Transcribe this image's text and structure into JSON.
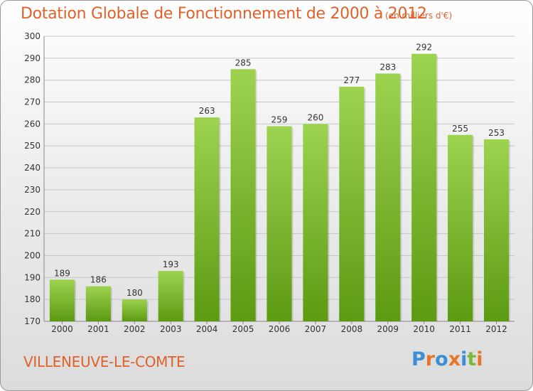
{
  "title": "Dotation Globale de Fonctionnement de 2000 à 2012",
  "unit_note": "(en milliers d'€)",
  "commune": "VILLENEUVE-LE-COMTE",
  "logo": {
    "letters": [
      "P",
      "r",
      "o",
      "x",
      "i",
      "t",
      "i"
    ],
    "colors": [
      "#3a8fd6",
      "#e8742a",
      "#3a8fd6",
      "#e8742a",
      "#3a8fd6",
      "#7fb93a",
      "#e8742a"
    ]
  },
  "colors": {
    "title": "#e0612a",
    "bar_light": "#9dd34f",
    "bar_dark": "#5c9a12",
    "grid": "#c8c8c8"
  },
  "chart_data": {
    "type": "bar",
    "title": "Dotation Globale de Fonctionnement de 2000 à 2012",
    "subtitle": "(en milliers d'€)",
    "categories": [
      "2000",
      "2001",
      "2002",
      "2003",
      "2004",
      "2005",
      "2006",
      "2007",
      "2008",
      "2009",
      "2010",
      "2011",
      "2012"
    ],
    "values": [
      189,
      186,
      180,
      193,
      263,
      285,
      259,
      260,
      277,
      283,
      292,
      255,
      253
    ],
    "ylim": [
      170,
      300
    ],
    "yticks": [
      170,
      180,
      190,
      200,
      210,
      220,
      230,
      240,
      250,
      260,
      270,
      280,
      290,
      300
    ],
    "grid": true,
    "data_labels": true
  }
}
